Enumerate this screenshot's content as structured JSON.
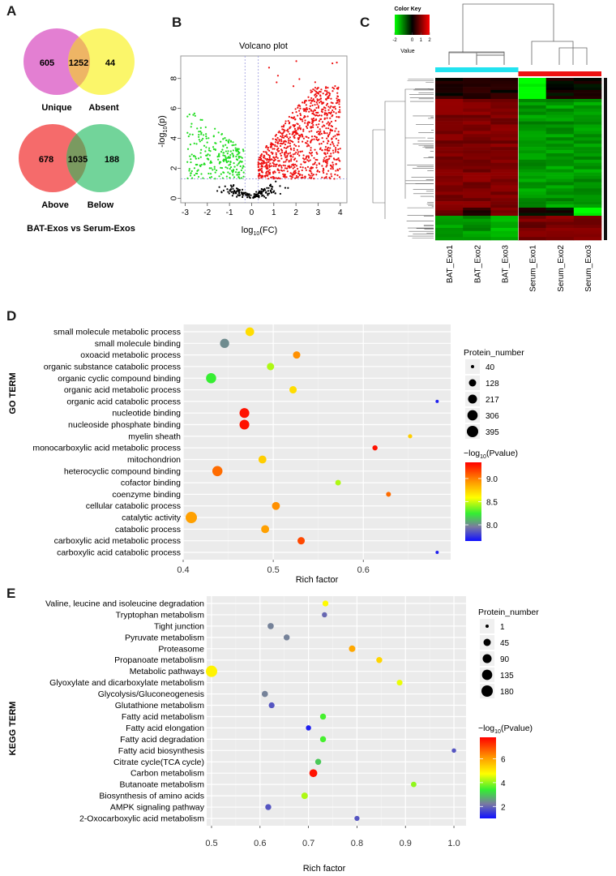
{
  "panels": {
    "A": {
      "letter": "A"
    },
    "B": {
      "letter": "B"
    },
    "C": {
      "letter": "C"
    },
    "D": {
      "letter": "D"
    },
    "E": {
      "letter": "E"
    }
  },
  "chart_data": [
    {
      "panel": "A",
      "type": "venn",
      "caption": "BAT-Exos vs Serum-Exos",
      "diagrams": [
        {
          "left_label": "Unique",
          "right_label": "Absent",
          "left_only": 605,
          "overlap": 1252,
          "right_only": 44,
          "left_color": "#e37fd2",
          "right_color": "#fbf66a",
          "overlap_color": "#eeb565"
        },
        {
          "left_label": "Above",
          "right_label": "Below",
          "left_only": 678,
          "overlap": 1035,
          "right_only": 188,
          "left_color": "#f56b6b",
          "right_color": "#72d49a",
          "overlap_color": "#7a9a60"
        }
      ]
    },
    {
      "panel": "B",
      "type": "scatter",
      "title": "Volcano plot",
      "xlabel": "log10(FC)",
      "ylabel": "-log10(p)",
      "xlim": [
        -3.2,
        4.3
      ],
      "ylim": [
        -0.3,
        9.5
      ],
      "xticks": [
        -3,
        -2,
        -1,
        0,
        1,
        2,
        3,
        4
      ],
      "yticks": [
        0,
        2,
        4,
        6,
        8
      ],
      "thresholds": {
        "fc": [
          -0.3,
          0.3
        ],
        "p": 1.3
      },
      "series": [
        {
          "name": "down",
          "color": "#22dd22",
          "count_approx": 250,
          "x_range": [
            -2.9,
            -0.35
          ],
          "y_range": [
            1.3,
            6.5
          ]
        },
        {
          "name": "up",
          "color": "#ee1111",
          "count_approx": 900,
          "x_range": [
            0.3,
            4.0
          ],
          "y_range": [
            1.3,
            9.2
          ]
        },
        {
          "name": "ns",
          "color": "#000000",
          "count_approx": 150,
          "x_range": [
            -2,
            1.8
          ],
          "y_range": [
            0,
            1.3
          ]
        }
      ]
    },
    {
      "panel": "C",
      "type": "heatmap",
      "color_key": {
        "title": "Color Key",
        "label": "Value",
        "ticks": [
          -2,
          0,
          1,
          2
        ],
        "low": "#00ff00",
        "mid": "#000000",
        "high": "#ff0000"
      },
      "columns": [
        "BAT_Exo1",
        "BAT_Exo2",
        "BAT_Exo3",
        "Serum_Exo1",
        "Serum_Exo2",
        "Serum_Exo3"
      ],
      "group_colors": [
        "#22e3f0",
        "#ee1111"
      ],
      "blocks": [
        {
          "rows_frac": [
            0.0,
            0.13
          ],
          "values": [
            0.2,
            0.2,
            0.2,
            -2,
            0,
            0
          ]
        },
        {
          "rows_frac": [
            0.13,
            0.8
          ],
          "values": [
            1.1,
            1.1,
            1.1,
            -1.2,
            -1.2,
            -1.2
          ]
        },
        {
          "rows_frac": [
            0.8,
            0.85
          ],
          "values": [
            0.9,
            0.3,
            1.0,
            0,
            0,
            -2
          ]
        },
        {
          "rows_frac": [
            0.85,
            1.0
          ],
          "values": [
            -1.2,
            -1.2,
            -1.4,
            1.0,
            1.1,
            1.1
          ]
        }
      ]
    },
    {
      "panel": "D",
      "type": "scatter",
      "ylabel": "GO TERM",
      "xlabel": "Rich factor",
      "xlim": [
        0.4,
        0.697
      ],
      "xticks": [
        0.4,
        0.5,
        0.6
      ],
      "size_legend": {
        "title": "Protein_number",
        "values": [
          40,
          128,
          217,
          306,
          395
        ]
      },
      "color_legend": {
        "title": "−log10(Pvalue)",
        "ticks": [
          8.0,
          8.5,
          9.0
        ],
        "range": [
          7.65,
          9.35
        ]
      },
      "terms": [
        {
          "term": "small molecule metabolic process",
          "rich": 0.474,
          "n": 200,
          "p": 8.7
        },
        {
          "term": "small molecule binding",
          "rich": 0.446,
          "n": 230,
          "p": 8.0
        },
        {
          "term": "oxoacid metabolic process",
          "rich": 0.526,
          "n": 130,
          "p": 8.95
        },
        {
          "term": "organic substance catabolic process",
          "rich": 0.497,
          "n": 130,
          "p": 8.45
        },
        {
          "term": "organic cyclic compound binding",
          "rich": 0.431,
          "n": 300,
          "p": 8.25
        },
        {
          "term": "organic acid metabolic process",
          "rich": 0.522,
          "n": 130,
          "p": 8.7
        },
        {
          "term": "organic acid catabolic process",
          "rich": 0.682,
          "n": 40,
          "p": 7.7
        },
        {
          "term": "nucleotide binding",
          "rich": 0.468,
          "n": 270,
          "p": 9.3
        },
        {
          "term": "nucleoside phosphate binding",
          "rich": 0.468,
          "n": 270,
          "p": 9.3
        },
        {
          "term": "myelin sheath",
          "rich": 0.652,
          "n": 45,
          "p": 8.75
        },
        {
          "term": "monocarboxylic acid metabolic process",
          "rich": 0.613,
          "n": 60,
          "p": 9.3
        },
        {
          "term": "mitochondrion",
          "rich": 0.488,
          "n": 160,
          "p": 8.75
        },
        {
          "term": "heterocyclic compound binding",
          "rich": 0.438,
          "n": 300,
          "p": 9.05
        },
        {
          "term": "cofactor binding",
          "rich": 0.572,
          "n": 70,
          "p": 8.45
        },
        {
          "term": "coenzyme binding",
          "rich": 0.628,
          "n": 55,
          "p": 9.05
        },
        {
          "term": "cellular catabolic process",
          "rich": 0.503,
          "n": 160,
          "p": 8.95
        },
        {
          "term": "catalytic activity",
          "rich": 0.409,
          "n": 395,
          "p": 8.9
        },
        {
          "term": "catabolic process",
          "rich": 0.491,
          "n": 160,
          "p": 8.9
        },
        {
          "term": "carboxylic acid metabolic process",
          "rich": 0.531,
          "n": 130,
          "p": 9.15
        },
        {
          "term": "carboxylic acid catabolic process",
          "rich": 0.682,
          "n": 40,
          "p": 7.7
        }
      ]
    },
    {
      "panel": "E",
      "type": "scatter",
      "ylabel": "KEGG TERM",
      "xlabel": "Rich factor",
      "xlim": [
        0.49,
        1.025
      ],
      "xticks": [
        0.5,
        0.6,
        0.7,
        0.8,
        0.9,
        1.0
      ],
      "size_legend": {
        "title": "Protein_number",
        "values": [
          1,
          45,
          90,
          135,
          180
        ]
      },
      "color_legend": {
        "title": "−log10(Pvalue)",
        "ticks": [
          2,
          4,
          6
        ],
        "range": [
          1,
          7.8
        ]
      },
      "terms": [
        {
          "term": "Valine, leucine and isoleucine degradation",
          "rich": 0.735,
          "n": 20,
          "p": 4.8
        },
        {
          "term": "Tryptophan metabolism",
          "rich": 0.733,
          "n": 12,
          "p": 2.0
        },
        {
          "term": "Tight junction",
          "rich": 0.622,
          "n": 25,
          "p": 2.3
        },
        {
          "term": "Pyruvate metabolism",
          "rich": 0.655,
          "n": 22,
          "p": 2.3
        },
        {
          "term": "Proteasome",
          "rich": 0.79,
          "n": 30,
          "p": 5.9
        },
        {
          "term": "Propanoate metabolism",
          "rich": 0.846,
          "n": 22,
          "p": 5.3
        },
        {
          "term": "Metabolic pathways",
          "rich": 0.5,
          "n": 180,
          "p": 4.9
        },
        {
          "term": "Glyoxylate and dicarboxylate metabolism",
          "rich": 0.888,
          "n": 18,
          "p": 4.6
        },
        {
          "term": "Glycolysis/Gluconeogenesis",
          "rich": 0.61,
          "n": 25,
          "p": 2.3
        },
        {
          "term": "Glutathione metabolism",
          "rich": 0.624,
          "n": 20,
          "p": 1.8
        },
        {
          "term": "Fatty acid metabolism",
          "rich": 0.73,
          "n": 22,
          "p": 3.5
        },
        {
          "term": "Fatty acid elongation",
          "rich": 0.7,
          "n": 12,
          "p": 1.2
        },
        {
          "term": "Fatty acid degradation",
          "rich": 0.73,
          "n": 22,
          "p": 3.5
        },
        {
          "term": "Fatty acid biosynthesis",
          "rich": 1.0,
          "n": 5,
          "p": 1.8
        },
        {
          "term": "Citrate cycle(TCA cycle)",
          "rich": 0.72,
          "n": 22,
          "p": 3.0
        },
        {
          "term": "Carbon metabolism",
          "rich": 0.71,
          "n": 60,
          "p": 7.6
        },
        {
          "term": "Butanoate metabolism",
          "rich": 0.917,
          "n": 15,
          "p": 4.0
        },
        {
          "term": "Biosynthesis of amino acids",
          "rich": 0.692,
          "n": 30,
          "p": 4.2
        },
        {
          "term": "AMPK signaling pathway",
          "rich": 0.617,
          "n": 22,
          "p": 1.8
        },
        {
          "term": "2-Oxocarboxylic acid metabolism",
          "rich": 0.8,
          "n": 10,
          "p": 1.8
        }
      ]
    }
  ]
}
